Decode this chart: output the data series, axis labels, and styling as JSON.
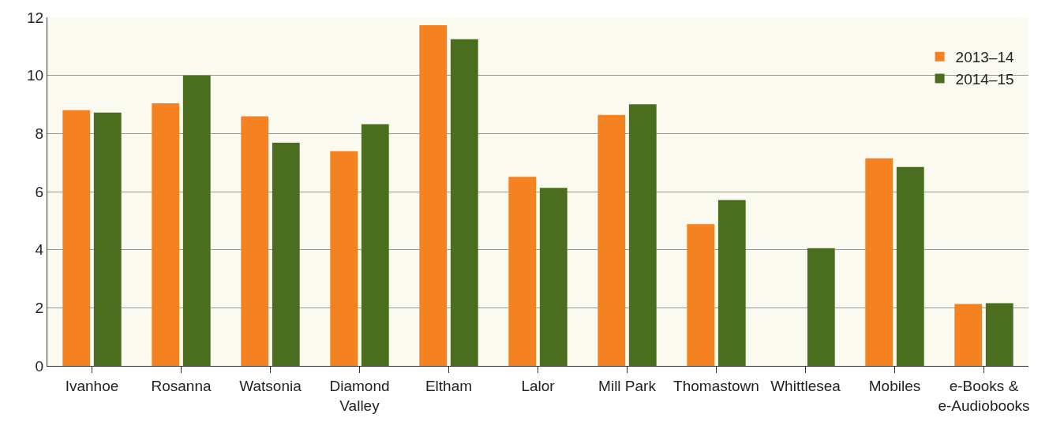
{
  "chart_data": {
    "type": "bar",
    "categories": [
      "Ivanhoe",
      "Rosanna",
      "Watsonia",
      "Diamond\nValley",
      "Eltham",
      "Lalor",
      "Mill Park",
      "Thomastown",
      "Whittlesea",
      "Mobiles",
      "e-Books &\ne-Audiobooks"
    ],
    "series": [
      {
        "name": "2013–14",
        "color": "#f58220",
        "values": [
          8.8,
          9.04,
          8.59,
          7.39,
          11.73,
          6.51,
          8.64,
          4.88,
          null,
          7.15,
          2.13
        ]
      },
      {
        "name": "2014–15",
        "color": "#4a6e1e",
        "values": [
          8.72,
          10.0,
          7.68,
          8.32,
          11.25,
          6.13,
          9.01,
          5.71,
          4.05,
          6.85,
          2.16
        ]
      }
    ],
    "ylim": [
      0,
      12
    ],
    "yticks": [
      0,
      2,
      4,
      6,
      8,
      10,
      12
    ],
    "grid": "y",
    "legend": "top right"
  }
}
